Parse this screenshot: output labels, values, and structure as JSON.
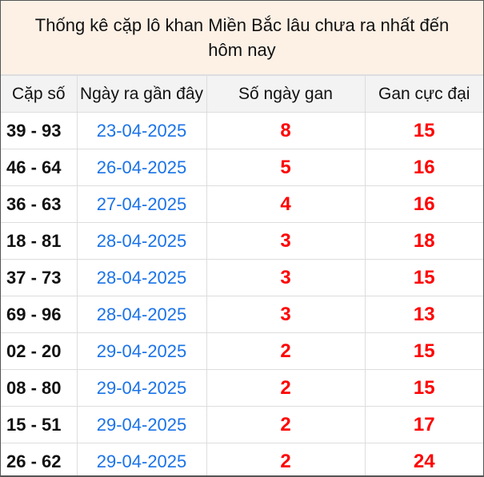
{
  "title": "Thống kê cặp lô khan Miền Bắc lâu chưa ra nhất đến hôm nay",
  "columns": [
    "Cặp số",
    "Ngày ra gần đây",
    "Số ngày gan",
    "Gan cực đại"
  ],
  "colors": {
    "title_bg": "#fdf1e6",
    "header_bg": "#f3f3f3",
    "date": "#1a73e8",
    "number": "#ff0000"
  },
  "rows": [
    {
      "pair": "39 - 93",
      "last_date": "23-04-2025",
      "days": "8",
      "max": "15"
    },
    {
      "pair": "46 - 64",
      "last_date": "26-04-2025",
      "days": "5",
      "max": "16"
    },
    {
      "pair": "36 - 63",
      "last_date": "27-04-2025",
      "days": "4",
      "max": "16"
    },
    {
      "pair": "18 - 81",
      "last_date": "28-04-2025",
      "days": "3",
      "max": "18"
    },
    {
      "pair": "37 - 73",
      "last_date": "28-04-2025",
      "days": "3",
      "max": "15"
    },
    {
      "pair": "69 - 96",
      "last_date": "28-04-2025",
      "days": "3",
      "max": "13"
    },
    {
      "pair": "02 - 20",
      "last_date": "29-04-2025",
      "days": "2",
      "max": "15"
    },
    {
      "pair": "08 - 80",
      "last_date": "29-04-2025",
      "days": "2",
      "max": "15"
    },
    {
      "pair": "15 - 51",
      "last_date": "29-04-2025",
      "days": "2",
      "max": "17"
    },
    {
      "pair": "26 - 62",
      "last_date": "29-04-2025",
      "days": "2",
      "max": "24"
    }
  ]
}
